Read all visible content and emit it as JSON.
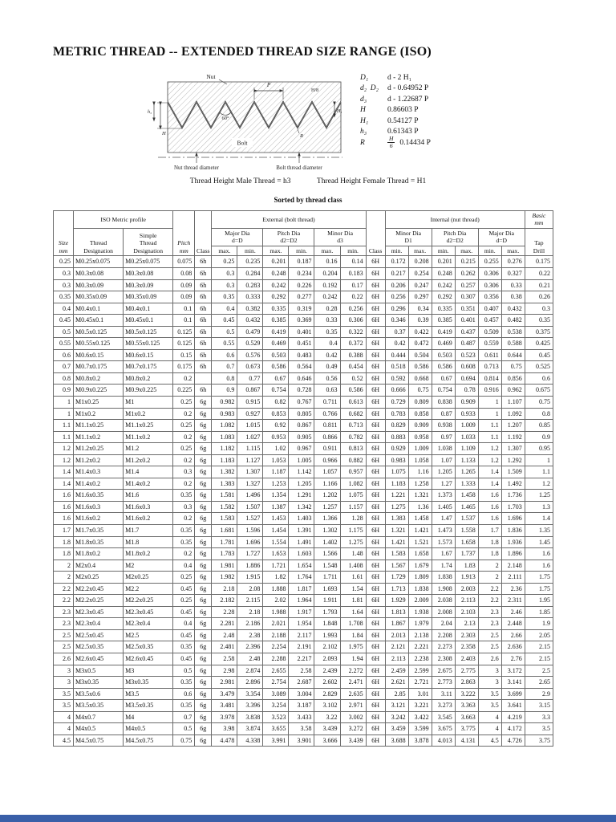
{
  "title": "METRIC THREAD -- EXTENDED THREAD SIZE RANGE (ISO)",
  "diagram": {
    "labels": {
      "nut": "Nut",
      "bolt": "Bolt",
      "p": "P",
      "angle": "60°",
      "h": "H",
      "h1": "H₁",
      "h3": "h₃",
      "r": "R",
      "h8": "H/8",
      "nut_dia": "Nut thread diameter",
      "bolt_dia": "Bolt thread diameter"
    },
    "formulas": [
      {
        "sym": "D₁",
        "expr": "d - 2 H₁"
      },
      {
        "sym": "d₂  D₂",
        "expr": "d - 0.64952 P"
      },
      {
        "sym": "d₃",
        "expr": "d - 1.22687 P"
      },
      {
        "sym": "H",
        "expr": "0.86603 P"
      },
      {
        "sym": "H₁",
        "expr": "0.54127 P"
      },
      {
        "sym": "h₃",
        "expr": "0.61343 P"
      },
      {
        "sym": "R",
        "frac_num": "H",
        "frac_den": "6",
        "expr": "0.14434 P"
      }
    ]
  },
  "captions": {
    "male": "Thread Height Male Thread = h3",
    "female": "Thread Height Female Thread = H1",
    "sorted": "Sorted by thread class"
  },
  "table": {
    "top_headers": {
      "iso_profile": "ISO Metric profile",
      "external": "External (bolt thread)",
      "internal": "Internal (nut thread)",
      "basic": "Basic\nmm"
    },
    "groups": {
      "ext_major": "Major Dia\nd=D",
      "ext_pitch": "Pitch Dia\nd2=D2",
      "ext_minor": "Minor Dia\nd3",
      "int_minor": "Minor Dia\nD1",
      "int_pitch": "Pitch Dia\nd2=D2",
      "int_major": "Major Dia\nd=D"
    },
    "col_headers": {
      "size": "Size\nmm",
      "thread": "Thread\nDesignation",
      "simple": "Simple\nThread\nDesignation",
      "pitch": "Pitch\nmm",
      "class": "Class",
      "max": "max.",
      "min": "min.",
      "tap": "Tap\nDrill"
    },
    "rows": [
      [
        "0.25",
        "M0.25x0.075",
        "M0.25x0.075",
        "0.075",
        "6h",
        "0.25",
        "0.235",
        "0.201",
        "0.187",
        "0.16",
        "0.14",
        "6H",
        "0.172",
        "0.208",
        "0.201",
        "0.215",
        "0.255",
        "0.276",
        "0.175"
      ],
      [
        "0.3",
        "M0.3x0.08",
        "M0.3x0.08",
        "0.08",
        "6h",
        "0.3",
        "0.284",
        "0.248",
        "0.234",
        "0.204",
        "0.183",
        "6H",
        "0.217",
        "0.254",
        "0.248",
        "0.262",
        "0.306",
        "0.327",
        "0.22"
      ],
      [
        "0.3",
        "M0.3x0.09",
        "M0.3x0.09",
        "0.09",
        "6h",
        "0.3",
        "0.283",
        "0.242",
        "0.226",
        "0.192",
        "0.17",
        "6H",
        "0.206",
        "0.247",
        "0.242",
        "0.257",
        "0.306",
        "0.33",
        "0.21"
      ],
      [
        "0.35",
        "M0.35x0.09",
        "M0.35x0.09",
        "0.09",
        "6h",
        "0.35",
        "0.333",
        "0.292",
        "0.277",
        "0.242",
        "0.22",
        "6H",
        "0.256",
        "0.297",
        "0.292",
        "0.307",
        "0.356",
        "0.38",
        "0.26"
      ],
      [
        "0.4",
        "M0.4x0.1",
        "M0.4x0.1",
        "0.1",
        "6h",
        "0.4",
        "0.382",
        "0.335",
        "0.319",
        "0.28",
        "0.256",
        "6H",
        "0.296",
        "0.34",
        "0.335",
        "0.351",
        "0.407",
        "0.432",
        "0.3"
      ],
      [
        "0.45",
        "M0.45x0.1",
        "M0.45x0.1",
        "0.1",
        "6h",
        "0.45",
        "0.432",
        "0.385",
        "0.369",
        "0.33",
        "0.306",
        "6H",
        "0.346",
        "0.39",
        "0.385",
        "0.401",
        "0.457",
        "0.482",
        "0.35"
      ],
      [
        "0.5",
        "M0.5x0.125",
        "M0.5x0.125",
        "0.125",
        "6h",
        "0.5",
        "0.479",
        "0.419",
        "0.401",
        "0.35",
        "0.322",
        "6H",
        "0.37",
        "0.422",
        "0.419",
        "0.437",
        "0.509",
        "0.538",
        "0.375"
      ],
      [
        "0.55",
        "M0.55x0.125",
        "M0.55x0.125",
        "0.125",
        "6h",
        "0.55",
        "0.529",
        "0.469",
        "0.451",
        "0.4",
        "0.372",
        "6H",
        "0.42",
        "0.472",
        "0.469",
        "0.487",
        "0.559",
        "0.588",
        "0.425"
      ],
      [
        "0.6",
        "M0.6x0.15",
        "M0.6x0.15",
        "0.15",
        "6h",
        "0.6",
        "0.576",
        "0.503",
        "0.483",
        "0.42",
        "0.388",
        "6H",
        "0.444",
        "0.504",
        "0.503",
        "0.523",
        "0.611",
        "0.644",
        "0.45"
      ],
      [
        "0.7",
        "M0.7x0.175",
        "M0.7x0.175",
        "0.175",
        "6h",
        "0.7",
        "0.673",
        "0.586",
        "0.564",
        "0.49",
        "0.454",
        "6H",
        "0.518",
        "0.586",
        "0.586",
        "0.608",
        "0.713",
        "0.75",
        "0.525"
      ],
      [
        "0.8",
        "M0.8x0.2",
        "M0.8x0.2",
        "0.2",
        "",
        "0.8",
        "0.77",
        "0.67",
        "0.646",
        "0.56",
        "0.52",
        "6H",
        "0.592",
        "0.668",
        "0.67",
        "0.694",
        "0.814",
        "0.856",
        "0.6"
      ],
      [
        "0.9",
        "M0.9x0.225",
        "M0.9x0.225",
        "0.225",
        "6h",
        "0.9",
        "0.867",
        "0.754",
        "0.728",
        "0.63",
        "0.586",
        "6H",
        "0.666",
        "0.75",
        "0.754",
        "0.78",
        "0.916",
        "0.962",
        "0.675"
      ],
      [
        "1",
        "M1x0.25",
        "M1",
        "0.25",
        "6g",
        "0.982",
        "0.915",
        "0.82",
        "0.767",
        "0.711",
        "0.613",
        "6H",
        "0.729",
        "0.809",
        "0.838",
        "0.909",
        "1",
        "1.107",
        "0.75"
      ],
      [
        "1",
        "M1x0.2",
        "M1x0.2",
        "0.2",
        "6g",
        "0.983",
        "0.927",
        "0.853",
        "0.805",
        "0.766",
        "0.682",
        "6H",
        "0.783",
        "0.858",
        "0.87",
        "0.933",
        "1",
        "1.092",
        "0.8"
      ],
      [
        "1.1",
        "M1.1x0.25",
        "M1.1x0.25",
        "0.25",
        "6g",
        "1.082",
        "1.015",
        "0.92",
        "0.867",
        "0.811",
        "0.713",
        "6H",
        "0.829",
        "0.909",
        "0.938",
        "1.009",
        "1.1",
        "1.207",
        "0.85"
      ],
      [
        "1.1",
        "M1.1x0.2",
        "M1.1x0.2",
        "0.2",
        "6g",
        "1.083",
        "1.027",
        "0.953",
        "0.905",
        "0.866",
        "0.782",
        "6H",
        "0.883",
        "0.958",
        "0.97",
        "1.033",
        "1.1",
        "1.192",
        "0.9"
      ],
      [
        "1.2",
        "M1.2x0.25",
        "M1.2",
        "0.25",
        "6g",
        "1.182",
        "1.115",
        "1.02",
        "0.967",
        "0.911",
        "0.813",
        "6H",
        "0.929",
        "1.009",
        "1.038",
        "1.109",
        "1.2",
        "1.307",
        "0.95"
      ],
      [
        "1.2",
        "M1.2x0.2",
        "M1.2x0.2",
        "0.2",
        "6g",
        "1.183",
        "1.127",
        "1.053",
        "1.005",
        "0.966",
        "0.882",
        "6H",
        "0.983",
        "1.058",
        "1.07",
        "1.133",
        "1.2",
        "1.292",
        "1"
      ],
      [
        "1.4",
        "M1.4x0.3",
        "M1.4",
        "0.3",
        "6g",
        "1.382",
        "1.307",
        "1.187",
        "1.142",
        "1.057",
        "0.957",
        "6H",
        "1.075",
        "1.16",
        "1.205",
        "1.265",
        "1.4",
        "1.509",
        "1.1"
      ],
      [
        "1.4",
        "M1.4x0.2",
        "M1.4x0.2",
        "0.2",
        "6g",
        "1.383",
        "1.327",
        "1.253",
        "1.205",
        "1.166",
        "1.082",
        "6H",
        "1.183",
        "1.258",
        "1.27",
        "1.333",
        "1.4",
        "1.492",
        "1.2"
      ],
      [
        "1.6",
        "M1.6x0.35",
        "M1.6",
        "0.35",
        "6g",
        "1.581",
        "1.496",
        "1.354",
        "1.291",
        "1.202",
        "1.075",
        "6H",
        "1.221",
        "1.321",
        "1.373",
        "1.458",
        "1.6",
        "1.736",
        "1.25"
      ],
      [
        "1.6",
        "M1.6x0.3",
        "M1.6x0.3",
        "0.3",
        "6g",
        "1.582",
        "1.507",
        "1.387",
        "1.342",
        "1.257",
        "1.157",
        "6H",
        "1.275",
        "1.36",
        "1.405",
        "1.465",
        "1.6",
        "1.703",
        "1.3"
      ],
      [
        "1.6",
        "M1.6x0.2",
        "M1.6x0.2",
        "0.2",
        "6g",
        "1.583",
        "1.527",
        "1.453",
        "1.403",
        "1.366",
        "1.28",
        "6H",
        "1.383",
        "1.458",
        "1.47",
        "1.537",
        "1.6",
        "1.696",
        "1.4"
      ],
      [
        "1.7",
        "M1.7x0.35",
        "M1.7",
        "0.35",
        "6g",
        "1.681",
        "1.596",
        "1.454",
        "1.391",
        "1.302",
        "1.175",
        "6H",
        "1.321",
        "1.421",
        "1.473",
        "1.558",
        "1.7",
        "1.836",
        "1.35"
      ],
      [
        "1.8",
        "M1.8x0.35",
        "M1.8",
        "0.35",
        "6g",
        "1.781",
        "1.696",
        "1.554",
        "1.491",
        "1.402",
        "1.275",
        "6H",
        "1.421",
        "1.521",
        "1.573",
        "1.658",
        "1.8",
        "1.936",
        "1.45"
      ],
      [
        "1.8",
        "M1.8x0.2",
        "M1.8x0.2",
        "0.2",
        "6g",
        "1.783",
        "1.727",
        "1.653",
        "1.603",
        "1.566",
        "1.48",
        "6H",
        "1.583",
        "1.658",
        "1.67",
        "1.737",
        "1.8",
        "1.896",
        "1.6"
      ],
      [
        "2",
        "M2x0.4",
        "M2",
        "0.4",
        "6g",
        "1.981",
        "1.886",
        "1.721",
        "1.654",
        "1.548",
        "1.408",
        "6H",
        "1.567",
        "1.679",
        "1.74",
        "1.83",
        "2",
        "2.148",
        "1.6"
      ],
      [
        "2",
        "M2x0.25",
        "M2x0.25",
        "0.25",
        "6g",
        "1.982",
        "1.915",
        "1.82",
        "1.764",
        "1.711",
        "1.61",
        "6H",
        "1.729",
        "1.809",
        "1.838",
        "1.913",
        "2",
        "2.111",
        "1.75"
      ],
      [
        "2.2",
        "M2.2x0.45",
        "M2.2",
        "0.45",
        "6g",
        "2.18",
        "2.08",
        "1.888",
        "1.817",
        "1.693",
        "1.54",
        "6H",
        "1.713",
        "1.838",
        "1.908",
        "2.003",
        "2.2",
        "2.36",
        "1.75"
      ],
      [
        "2.2",
        "M2.2x0.25",
        "M2.2x0.25",
        "0.25",
        "6g",
        "2.182",
        "2.115",
        "2.02",
        "1.964",
        "1.911",
        "1.81",
        "6H",
        "1.929",
        "2.009",
        "2.038",
        "2.113",
        "2.2",
        "2.311",
        "1.95"
      ],
      [
        "2.3",
        "M2.3x0.45",
        "M2.3x0.45",
        "0.45",
        "6g",
        "2.28",
        "2.18",
        "1.988",
        "1.917",
        "1.793",
        "1.64",
        "6H",
        "1.813",
        "1.938",
        "2.008",
        "2.103",
        "2.3",
        "2.46",
        "1.85"
      ],
      [
        "2.3",
        "M2.3x0.4",
        "M2.3x0.4",
        "0.4",
        "6g",
        "2.281",
        "2.186",
        "2.021",
        "1.954",
        "1.848",
        "1.708",
        "6H",
        "1.867",
        "1.979",
        "2.04",
        "2.13",
        "2.3",
        "2.448",
        "1.9"
      ],
      [
        "2.5",
        "M2.5x0.45",
        "M2.5",
        "0.45",
        "6g",
        "2.48",
        "2.38",
        "2.188",
        "2.117",
        "1.993",
        "1.84",
        "6H",
        "2.013",
        "2.138",
        "2.208",
        "2.303",
        "2.5",
        "2.66",
        "2.05"
      ],
      [
        "2.5",
        "M2.5x0.35",
        "M2.5x0.35",
        "0.35",
        "6g",
        "2.481",
        "2.396",
        "2.254",
        "2.191",
        "2.102",
        "1.975",
        "6H",
        "2.121",
        "2.221",
        "2.273",
        "2.358",
        "2.5",
        "2.636",
        "2.15"
      ],
      [
        "2.6",
        "M2.6x0.45",
        "M2.6x0.45",
        "0.45",
        "6g",
        "2.58",
        "2.48",
        "2.288",
        "2.217",
        "2.093",
        "1.94",
        "6H",
        "2.113",
        "2.238",
        "2.308",
        "2.403",
        "2.6",
        "2.76",
        "2.15"
      ],
      [
        "3",
        "M3x0.5",
        "M3",
        "0.5",
        "6g",
        "2.98",
        "2.874",
        "2.655",
        "2.58",
        "2.439",
        "2.272",
        "6H",
        "2.459",
        "2.599",
        "2.675",
        "2.775",
        "3",
        "3.172",
        "2.5"
      ],
      [
        "3",
        "M3x0.35",
        "M3x0.35",
        "0.35",
        "6g",
        "2.981",
        "2.896",
        "2.754",
        "2.687",
        "2.602",
        "2.471",
        "6H",
        "2.621",
        "2.721",
        "2.773",
        "2.863",
        "3",
        "3.141",
        "2.65"
      ],
      [
        "3.5",
        "M3.5x0.6",
        "M3.5",
        "0.6",
        "6g",
        "3.479",
        "3.354",
        "3.089",
        "3.004",
        "2.829",
        "2.635",
        "6H",
        "2.85",
        "3.01",
        "3.11",
        "3.222",
        "3.5",
        "3.699",
        "2.9"
      ],
      [
        "3.5",
        "M3.5x0.35",
        "M3.5x0.35",
        "0.35",
        "6g",
        "3.481",
        "3.396",
        "3.254",
        "3.187",
        "3.102",
        "2.971",
        "6H",
        "3.121",
        "3.221",
        "3.273",
        "3.363",
        "3.5",
        "3.641",
        "3.15"
      ],
      [
        "4",
        "M4x0.7",
        "M4",
        "0.7",
        "6g",
        "3.978",
        "3.838",
        "3.523",
        "3.433",
        "3.22",
        "3.002",
        "6H",
        "3.242",
        "3.422",
        "3.545",
        "3.663",
        "4",
        "4.219",
        "3.3"
      ],
      [
        "4",
        "M4x0.5",
        "M4x0.5",
        "0.5",
        "6g",
        "3.98",
        "3.874",
        "3.655",
        "3.58",
        "3.439",
        "3.272",
        "6H",
        "3.459",
        "3.599",
        "3.675",
        "3.775",
        "4",
        "4.172",
        "3.5"
      ],
      [
        "4.5",
        "M4.5x0.75",
        "M4.5x0.75",
        "0.75",
        "6g",
        "4.478",
        "4.338",
        "3.991",
        "3.901",
        "3.666",
        "3.439",
        "6H",
        "3.688",
        "3.878",
        "4.013",
        "4.131",
        "4.5",
        "4.726",
        "3.75"
      ]
    ]
  },
  "footer": {
    "bar_color": "#3a5fa8"
  }
}
